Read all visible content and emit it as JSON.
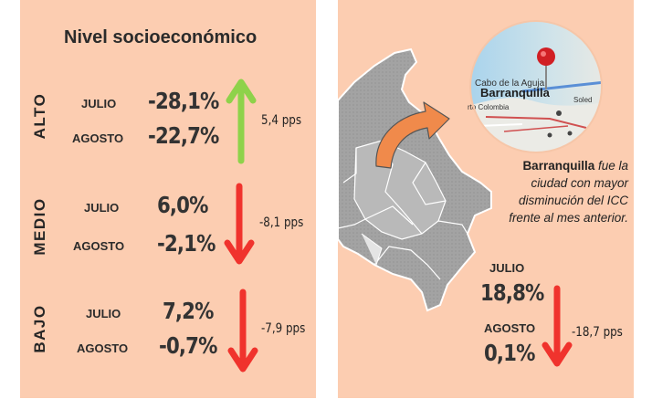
{
  "left": {
    "title": "Nivel socioeconómico",
    "groups": [
      {
        "label": "ALTO",
        "month1": "JULIO",
        "value1": "-28,1%",
        "month2": "AGOSTO",
        "value2": "-22,7%",
        "change": "5,4 pps",
        "direction": "up",
        "arrow_color": "#8ed24a"
      },
      {
        "label": "MEDIO",
        "month1": "JULIO",
        "value1": "6,0%",
        "month2": "AGOSTO",
        "value2": "-2,1%",
        "change": "-8,1 pps",
        "direction": "down",
        "arrow_color": "#f0332d"
      },
      {
        "label": "BAJO",
        "month1": "JULIO",
        "value1": "7,2%",
        "month2": "AGOSTO",
        "value2": "-0,7%",
        "change": "-7,9 pps",
        "direction": "down",
        "arrow_color": "#f0332d"
      }
    ]
  },
  "right": {
    "map_labels": {
      "line1": "Cabo de la Aguja",
      "city": "Barranquilla",
      "line3": "rto Colombia",
      "line4": "Soled"
    },
    "caption_city": "Barranquilla",
    "caption_rest": " fue la ciudad con mayor disminución del ICC frente al mes anterior.",
    "month1": "JULIO",
    "value1": "18,8%",
    "month2": "AGOSTO",
    "value2": "0,1%",
    "change": "-18,7 pps",
    "arrow_color": "#f0332d"
  },
  "colors": {
    "panel_bg": "#fccdb1",
    "map_gray": "#9a9a9a",
    "curved_arrow": "#f08a4b"
  }
}
